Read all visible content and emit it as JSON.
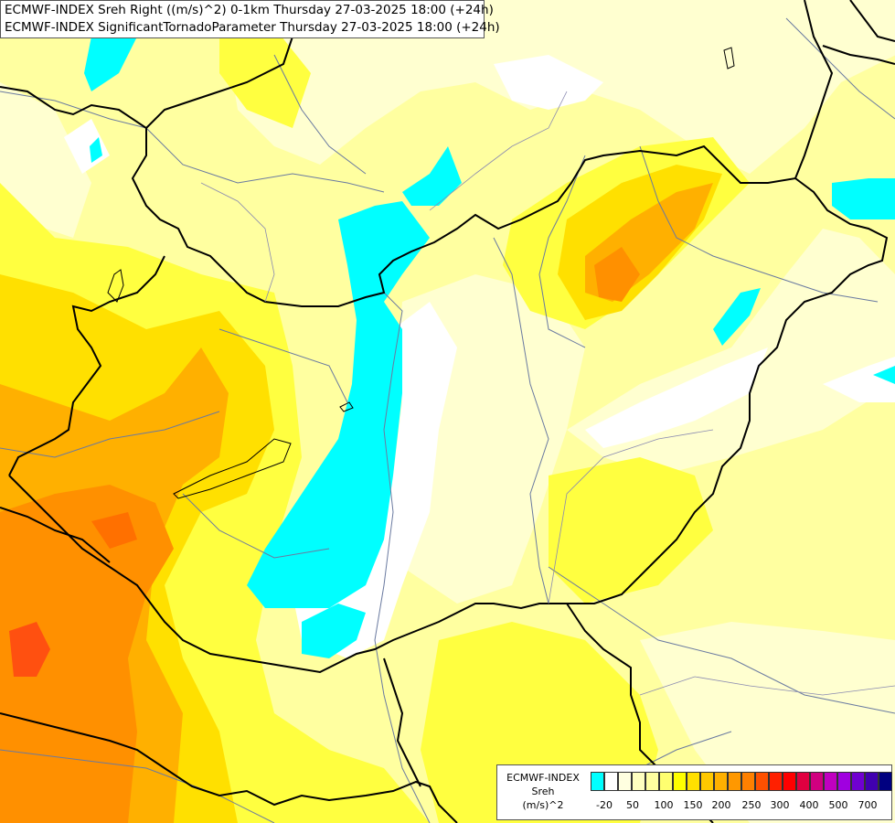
{
  "header": {
    "line1": "ECMWF-INDEX Sreh Right ((m/s)^2) 0-1km Thursday 27-03-2025 18:00 (+24h)",
    "line2": "ECMWF-INDEX SignificantTornadoParameter Thursday 27-03-2025 18:00 (+24h)"
  },
  "legend": {
    "title_line1": "ECMWF-INDEX",
    "title_line2": "Sreh",
    "title_line3": "(m/s)^2",
    "colors": [
      "#00ffff",
      "#ffffff",
      "#ffffe0",
      "#ffffc0",
      "#ffffa0",
      "#ffff70",
      "#ffff00",
      "#ffe000",
      "#ffc800",
      "#ffb000",
      "#ff9800",
      "#ff8000",
      "#ff5000",
      "#ff2000",
      "#ff0000",
      "#e00040",
      "#d00080",
      "#c000c0",
      "#a000e0",
      "#7000d0",
      "#4000b0",
      "#000080"
    ],
    "tick_labels": [
      "-20",
      "50",
      "100",
      "150",
      "200",
      "250",
      "300",
      "400",
      "500",
      "700"
    ]
  },
  "colors": {
    "base_yellow": "#ffffa0",
    "light_yellow": "#ffffd0",
    "yellow": "#ffff40",
    "gold": "#ffe000",
    "orange": "#ffb000",
    "dark_orange": "#ff8000",
    "red_orange": "#ff5010",
    "cyan": "#00ffff",
    "border": "#000000",
    "river": "#6a7aa0"
  }
}
